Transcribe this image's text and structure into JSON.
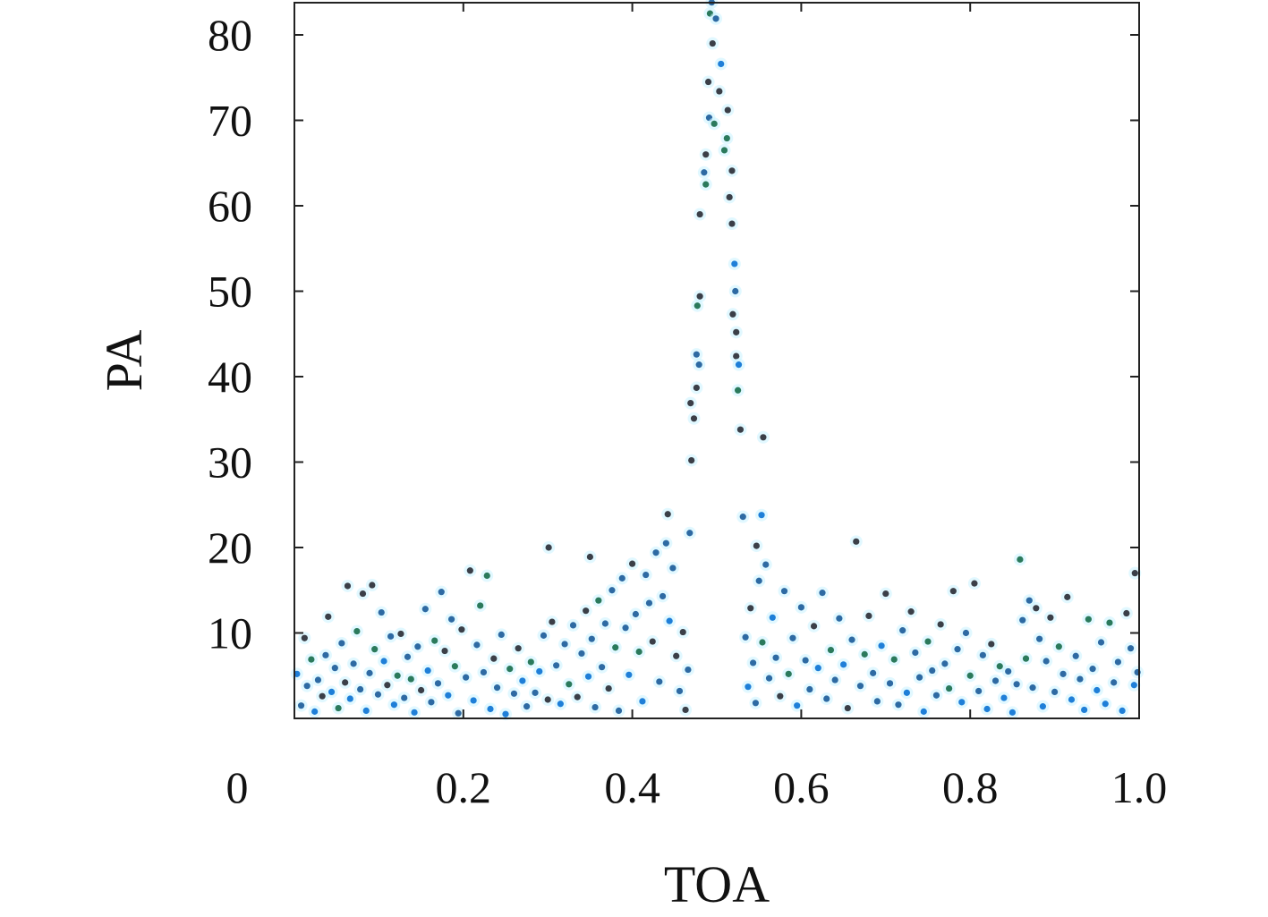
{
  "chart_data": {
    "type": "scatter",
    "xlabel": "TOA",
    "ylabel": "PA",
    "xlim": [
      0,
      1.0
    ],
    "ylim": [
      0,
      84
    ],
    "x_ticks": [
      "0",
      "0.2",
      "0.4",
      "0.6",
      "0.8",
      "1.0"
    ],
    "x_tick_values": [
      0,
      0.2,
      0.4,
      0.6,
      0.8,
      1.0
    ],
    "y_ticks": [
      "10",
      "20",
      "30",
      "40",
      "50",
      "60",
      "70",
      "80"
    ],
    "y_tick_values": [
      10,
      20,
      30,
      40,
      50,
      60,
      70,
      80
    ],
    "grid": false,
    "point_colors": [
      "#3b3f48",
      "#2e6aa3",
      "#1f7fd8",
      "#2b7a5c"
    ],
    "points": [
      [
        0.494,
        83.8,
        1
      ],
      [
        0.492,
        82.5,
        3
      ],
      [
        0.499,
        81.9,
        1
      ],
      [
        0.495,
        79,
        0
      ],
      [
        0.49,
        74.5,
        0
      ],
      [
        0.505,
        76.6,
        2
      ],
      [
        0.503,
        73.4,
        0
      ],
      [
        0.513,
        71.2,
        0
      ],
      [
        0.491,
        70.3,
        1
      ],
      [
        0.497,
        69.6,
        3
      ],
      [
        0.512,
        67.9,
        3
      ],
      [
        0.487,
        66,
        0
      ],
      [
        0.509,
        66.5,
        3
      ],
      [
        0.485,
        63.9,
        1
      ],
      [
        0.518,
        64.1,
        0
      ],
      [
        0.487,
        62.5,
        3
      ],
      [
        0.515,
        61.0,
        0
      ],
      [
        0.48,
        59,
        0
      ],
      [
        0.518,
        57.9,
        0
      ],
      [
        0.521,
        53.2,
        2
      ],
      [
        0.48,
        49.4,
        0
      ],
      [
        0.522,
        50,
        1
      ],
      [
        0.477,
        48.3,
        3
      ],
      [
        0.519,
        47.3,
        0
      ],
      [
        0.523,
        45.2,
        0
      ],
      [
        0.476,
        42.6,
        1
      ],
      [
        0.523,
        42.4,
        0
      ],
      [
        0.479,
        41.4,
        1
      ],
      [
        0.526,
        41.4,
        2
      ],
      [
        0.525,
        38.4,
        3
      ],
      [
        0.476,
        38.7,
        0
      ],
      [
        0.469,
        36.9,
        0
      ],
      [
        0.473,
        35.1,
        0
      ],
      [
        0.528,
        33.8,
        0
      ],
      [
        0.555,
        32.9,
        0
      ],
      [
        0.47,
        30.2,
        0
      ],
      [
        0.468,
        21.7,
        1
      ],
      [
        0.442,
        23.9,
        0
      ],
      [
        0.531,
        23.6,
        1
      ],
      [
        0.553,
        23.8,
        2
      ],
      [
        0.547,
        20.2,
        0
      ],
      [
        0.301,
        20,
        0
      ],
      [
        0.35,
        18.9,
        0
      ],
      [
        0.665,
        20.7,
        0
      ],
      [
        0.859,
        18.6,
        3
      ],
      [
        0.995,
        17.0,
        0
      ],
      [
        0.003,
        5.2,
        2
      ],
      [
        0.008,
        1.5,
        1
      ],
      [
        0.012,
        9.4,
        0
      ],
      [
        0.015,
        3.8,
        1
      ],
      [
        0.02,
        6.9,
        3
      ],
      [
        0.024,
        0.8,
        2
      ],
      [
        0.028,
        4.5,
        1
      ],
      [
        0.033,
        2.6,
        0
      ],
      [
        0.037,
        7.4,
        1
      ],
      [
        0.04,
        11.9,
        0
      ],
      [
        0.044,
        3.1,
        2
      ],
      [
        0.048,
        5.9,
        1
      ],
      [
        0.052,
        1.2,
        3
      ],
      [
        0.056,
        8.8,
        1
      ],
      [
        0.06,
        4.2,
        0
      ],
      [
        0.063,
        15.5,
        0
      ],
      [
        0.066,
        2.3,
        2
      ],
      [
        0.07,
        6.4,
        1
      ],
      [
        0.074,
        10.2,
        3
      ],
      [
        0.078,
        3.4,
        1
      ],
      [
        0.081,
        14.6,
        0
      ],
      [
        0.085,
        0.9,
        2
      ],
      [
        0.089,
        5.3,
        1
      ],
      [
        0.092,
        15.6,
        0
      ],
      [
        0.095,
        8.1,
        3
      ],
      [
        0.099,
        2.8,
        1
      ],
      [
        0.103,
        12.4,
        1
      ],
      [
        0.106,
        6.7,
        2
      ],
      [
        0.11,
        3.9,
        0
      ],
      [
        0.114,
        9.6,
        1
      ],
      [
        0.118,
        1.6,
        2
      ],
      [
        0.122,
        5.0,
        3
      ],
      [
        0.126,
        9.9,
        0
      ],
      [
        0.13,
        2.4,
        1
      ],
      [
        0.134,
        7.2,
        1
      ],
      [
        0.138,
        4.6,
        3
      ],
      [
        0.142,
        0.7,
        2
      ],
      [
        0.146,
        8.4,
        1
      ],
      [
        0.15,
        3.3,
        0
      ],
      [
        0.155,
        12.8,
        1
      ],
      [
        0.158,
        5.6,
        2
      ],
      [
        0.162,
        1.9,
        1
      ],
      [
        0.166,
        9.1,
        3
      ],
      [
        0.17,
        4.1,
        1
      ],
      [
        0.174,
        14.8,
        1
      ],
      [
        0.178,
        7.9,
        0
      ],
      [
        0.182,
        2.7,
        2
      ],
      [
        0.186,
        11.6,
        1
      ],
      [
        0.19,
        6.1,
        3
      ],
      [
        0.194,
        0.6,
        1
      ],
      [
        0.198,
        10.4,
        0
      ],
      [
        0.203,
        4.8,
        1
      ],
      [
        0.208,
        17.3,
        0
      ],
      [
        0.212,
        2.1,
        2
      ],
      [
        0.216,
        8.6,
        1
      ],
      [
        0.22,
        13.2,
        3
      ],
      [
        0.224,
        5.4,
        1
      ],
      [
        0.228,
        16.7,
        3
      ],
      [
        0.232,
        1.1,
        2
      ],
      [
        0.236,
        7.0,
        0
      ],
      [
        0.24,
        3.6,
        1
      ],
      [
        0.245,
        9.8,
        1
      ],
      [
        0.25,
        0.5,
        2
      ],
      [
        0.255,
        5.8,
        3
      ],
      [
        0.26,
        2.9,
        1
      ],
      [
        0.265,
        8.2,
        0
      ],
      [
        0.27,
        4.4,
        2
      ],
      [
        0.275,
        1.4,
        1
      ],
      [
        0.28,
        6.6,
        3
      ],
      [
        0.285,
        3.0,
        1
      ],
      [
        0.29,
        5.5,
        2
      ],
      [
        0.295,
        9.7,
        1
      ],
      [
        0.3,
        2.2,
        0
      ],
      [
        0.305,
        11.3,
        0
      ],
      [
        0.31,
        6.2,
        1
      ],
      [
        0.315,
        1.7,
        2
      ],
      [
        0.32,
        8.7,
        1
      ],
      [
        0.325,
        4.0,
        3
      ],
      [
        0.33,
        10.9,
        1
      ],
      [
        0.335,
        2.5,
        0
      ],
      [
        0.34,
        7.6,
        1
      ],
      [
        0.345,
        12.6,
        0
      ],
      [
        0.348,
        4.9,
        2
      ],
      [
        0.352,
        9.3,
        1
      ],
      [
        0.356,
        1.3,
        1
      ],
      [
        0.36,
        13.8,
        3
      ],
      [
        0.364,
        6.0,
        1
      ],
      [
        0.368,
        11.1,
        1
      ],
      [
        0.372,
        3.5,
        0
      ],
      [
        0.376,
        15.0,
        1
      ],
      [
        0.38,
        8.3,
        3
      ],
      [
        0.384,
        0.9,
        1
      ],
      [
        0.388,
        16.4,
        1
      ],
      [
        0.392,
        10.6,
        1
      ],
      [
        0.396,
        5.1,
        2
      ],
      [
        0.4,
        18.1,
        0
      ],
      [
        0.404,
        12.2,
        1
      ],
      [
        0.408,
        7.8,
        3
      ],
      [
        0.412,
        2.0,
        2
      ],
      [
        0.416,
        16.8,
        1
      ],
      [
        0.42,
        13.5,
        1
      ],
      [
        0.424,
        9.0,
        0
      ],
      [
        0.428,
        19.4,
        1
      ],
      [
        0.432,
        4.3,
        1
      ],
      [
        0.436,
        14.3,
        1
      ],
      [
        0.44,
        20.5,
        1
      ],
      [
        0.444,
        11.4,
        2
      ],
      [
        0.448,
        17.6,
        1
      ],
      [
        0.452,
        7.3,
        0
      ],
      [
        0.456,
        3.2,
        1
      ],
      [
        0.46,
        10.1,
        0
      ],
      [
        0.463,
        1.0,
        0
      ],
      [
        0.466,
        5.7,
        1
      ],
      [
        0.534,
        9.5,
        1
      ],
      [
        0.537,
        3.7,
        2
      ],
      [
        0.54,
        12.9,
        0
      ],
      [
        0.543,
        6.5,
        1
      ],
      [
        0.546,
        1.8,
        1
      ],
      [
        0.55,
        16.1,
        1
      ],
      [
        0.554,
        8.9,
        3
      ],
      [
        0.558,
        18.0,
        1
      ],
      [
        0.562,
        4.7,
        1
      ],
      [
        0.566,
        11.8,
        2
      ],
      [
        0.57,
        7.1,
        1
      ],
      [
        0.575,
        2.6,
        0
      ],
      [
        0.58,
        14.9,
        1
      ],
      [
        0.585,
        5.2,
        3
      ],
      [
        0.59,
        9.4,
        1
      ],
      [
        0.595,
        1.5,
        2
      ],
      [
        0.6,
        13.0,
        1
      ],
      [
        0.605,
        6.8,
        1
      ],
      [
        0.61,
        3.4,
        1
      ],
      [
        0.615,
        10.8,
        0
      ],
      [
        0.62,
        5.9,
        2
      ],
      [
        0.625,
        14.7,
        1
      ],
      [
        0.63,
        2.3,
        1
      ],
      [
        0.635,
        8.0,
        3
      ],
      [
        0.64,
        4.5,
        1
      ],
      [
        0.645,
        11.7,
        1
      ],
      [
        0.65,
        6.3,
        2
      ],
      [
        0.655,
        1.2,
        0
      ],
      [
        0.66,
        9.2,
        1
      ],
      [
        0.67,
        3.8,
        1
      ],
      [
        0.675,
        7.5,
        3
      ],
      [
        0.68,
        12.0,
        0
      ],
      [
        0.685,
        5.3,
        1
      ],
      [
        0.69,
        2.0,
        1
      ],
      [
        0.695,
        8.5,
        2
      ],
      [
        0.7,
        14.6,
        0
      ],
      [
        0.705,
        4.1,
        1
      ],
      [
        0.71,
        6.9,
        3
      ],
      [
        0.715,
        1.6,
        1
      ],
      [
        0.72,
        10.3,
        1
      ],
      [
        0.725,
        3.0,
        2
      ],
      [
        0.73,
        12.5,
        0
      ],
      [
        0.735,
        7.7,
        1
      ],
      [
        0.74,
        4.8,
        1
      ],
      [
        0.745,
        0.8,
        2
      ],
      [
        0.75,
        9.0,
        3
      ],
      [
        0.755,
        5.6,
        1
      ],
      [
        0.76,
        2.7,
        1
      ],
      [
        0.765,
        11.0,
        0
      ],
      [
        0.77,
        6.4,
        1
      ],
      [
        0.775,
        3.5,
        3
      ],
      [
        0.78,
        14.9,
        0
      ],
      [
        0.785,
        8.1,
        1
      ],
      [
        0.79,
        1.9,
        2
      ],
      [
        0.795,
        10.0,
        1
      ],
      [
        0.8,
        5.0,
        3
      ],
      [
        0.805,
        15.8,
        0
      ],
      [
        0.81,
        3.2,
        1
      ],
      [
        0.815,
        7.4,
        1
      ],
      [
        0.82,
        1.1,
        2
      ],
      [
        0.825,
        8.7,
        0
      ],
      [
        0.83,
        4.4,
        1
      ],
      [
        0.835,
        6.1,
        3
      ],
      [
        0.84,
        2.4,
        2
      ],
      [
        0.845,
        5.5,
        1
      ],
      [
        0.85,
        0.7,
        2
      ],
      [
        0.855,
        4.0,
        1
      ],
      [
        0.862,
        11.5,
        1
      ],
      [
        0.866,
        7.0,
        3
      ],
      [
        0.87,
        13.8,
        1
      ],
      [
        0.874,
        3.6,
        1
      ],
      [
        0.878,
        12.9,
        0
      ],
      [
        0.882,
        9.3,
        1
      ],
      [
        0.886,
        1.4,
        2
      ],
      [
        0.89,
        6.7,
        1
      ],
      [
        0.895,
        11.8,
        0
      ],
      [
        0.9,
        3.1,
        1
      ],
      [
        0.905,
        8.4,
        3
      ],
      [
        0.91,
        5.2,
        1
      ],
      [
        0.915,
        14.2,
        0
      ],
      [
        0.92,
        2.2,
        2
      ],
      [
        0.925,
        7.3,
        1
      ],
      [
        0.93,
        4.6,
        1
      ],
      [
        0.935,
        1.0,
        2
      ],
      [
        0.94,
        11.6,
        3
      ],
      [
        0.945,
        5.8,
        1
      ],
      [
        0.95,
        3.3,
        2
      ],
      [
        0.955,
        8.9,
        1
      ],
      [
        0.96,
        1.7,
        2
      ],
      [
        0.965,
        11.2,
        3
      ],
      [
        0.97,
        4.2,
        1
      ],
      [
        0.975,
        6.6,
        1
      ],
      [
        0.98,
        0.9,
        2
      ],
      [
        0.985,
        12.3,
        0
      ],
      [
        0.99,
        8.2,
        1
      ],
      [
        0.994,
        3.9,
        2
      ],
      [
        0.998,
        5.4,
        1
      ]
    ]
  }
}
